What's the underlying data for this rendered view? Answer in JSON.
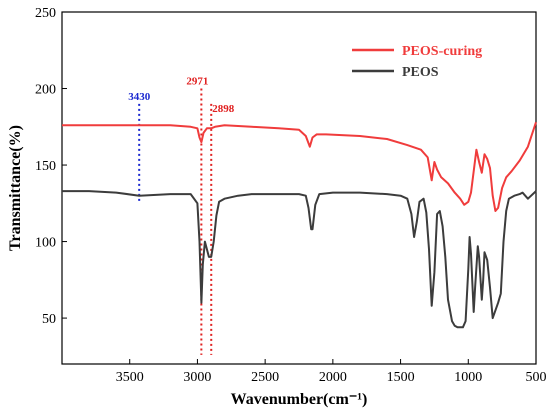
{
  "chart_data": {
    "type": "line",
    "title": "",
    "xlabel": "Wavenumber(cm⁻¹)",
    "ylabel": "Transmittance(%)",
    "xlim": [
      4000,
      500
    ],
    "ylim": [
      20,
      250
    ],
    "xticks": [
      3500,
      3000,
      2500,
      2000,
      1500,
      1000,
      500
    ],
    "yticks": [
      50,
      100,
      150,
      200,
      250
    ],
    "legend_position": "top-right",
    "grid": false,
    "series": [
      {
        "name": "PEOS-curing",
        "color": "#f03c3c",
        "x": [
          4000,
          3800,
          3600,
          3430,
          3200,
          3050,
          3000,
          2985,
          2971,
          2955,
          2930,
          2898,
          2870,
          2800,
          2600,
          2400,
          2250,
          2200,
          2170,
          2150,
          2120,
          2050,
          1800,
          1600,
          1450,
          1350,
          1300,
          1270,
          1250,
          1230,
          1200,
          1150,
          1100,
          1060,
          1030,
          1000,
          980,
          960,
          940,
          920,
          900,
          880,
          860,
          840,
          820,
          800,
          780,
          750,
          720,
          680,
          620,
          560,
          500
        ],
        "y": [
          176,
          176,
          176,
          176,
          176,
          175,
          174,
          168,
          165,
          171,
          174,
          174,
          175,
          176,
          175,
          174,
          173,
          169,
          162,
          168,
          170,
          170,
          169,
          167,
          163,
          160,
          155,
          140,
          152,
          147,
          142,
          138,
          132,
          128,
          124,
          126,
          132,
          146,
          160,
          152,
          145,
          157,
          154,
          148,
          130,
          120,
          122,
          135,
          142,
          146,
          153,
          162,
          178
        ]
      },
      {
        "name": "PEOS",
        "color": "#3c3c3c",
        "x": [
          4000,
          3800,
          3600,
          3430,
          3200,
          3050,
          3000,
          2985,
          2971,
          2960,
          2945,
          2930,
          2915,
          2898,
          2880,
          2860,
          2840,
          2800,
          2700,
          2600,
          2400,
          2250,
          2200,
          2180,
          2160,
          2150,
          2130,
          2100,
          2000,
          1800,
          1600,
          1500,
          1450,
          1420,
          1400,
          1380,
          1360,
          1330,
          1310,
          1290,
          1270,
          1250,
          1230,
          1210,
          1190,
          1170,
          1150,
          1120,
          1100,
          1080,
          1060,
          1040,
          1020,
          1000,
          990,
          980,
          960,
          950,
          930,
          920,
          900,
          890,
          880,
          860,
          840,
          820,
          800,
          780,
          760,
          740,
          720,
          700,
          660,
          620,
          600,
          560,
          500
        ],
        "y": [
          133,
          133,
          132,
          130,
          131,
          131,
          125,
          100,
          60,
          85,
          100,
          95,
          90,
          90,
          100,
          117,
          126,
          128,
          130,
          131,
          131,
          131,
          130,
          122,
          108,
          108,
          124,
          131,
          132,
          132,
          131,
          130,
          128,
          118,
          103,
          113,
          126,
          128,
          119,
          95,
          58,
          80,
          118,
          120,
          110,
          90,
          62,
          48,
          45,
          44,
          44,
          44,
          48,
          82,
          103,
          92,
          54,
          70,
          97,
          90,
          62,
          75,
          93,
          88,
          70,
          50,
          55,
          60,
          66,
          100,
          120,
          128,
          130,
          131,
          132,
          128,
          133
        ]
      }
    ],
    "annotations": [
      {
        "label": "3430",
        "x": 3430,
        "color": "#1a28d0",
        "y_top": 190,
        "y_bottom": 125
      },
      {
        "label": "2971",
        "x": 2971,
        "color": "#e02020",
        "y_top": 200,
        "y_bottom": 26
      },
      {
        "label": "2898",
        "x": 2898,
        "color": "#e02020",
        "y_top": 190,
        "y_bottom": 26
      }
    ]
  }
}
